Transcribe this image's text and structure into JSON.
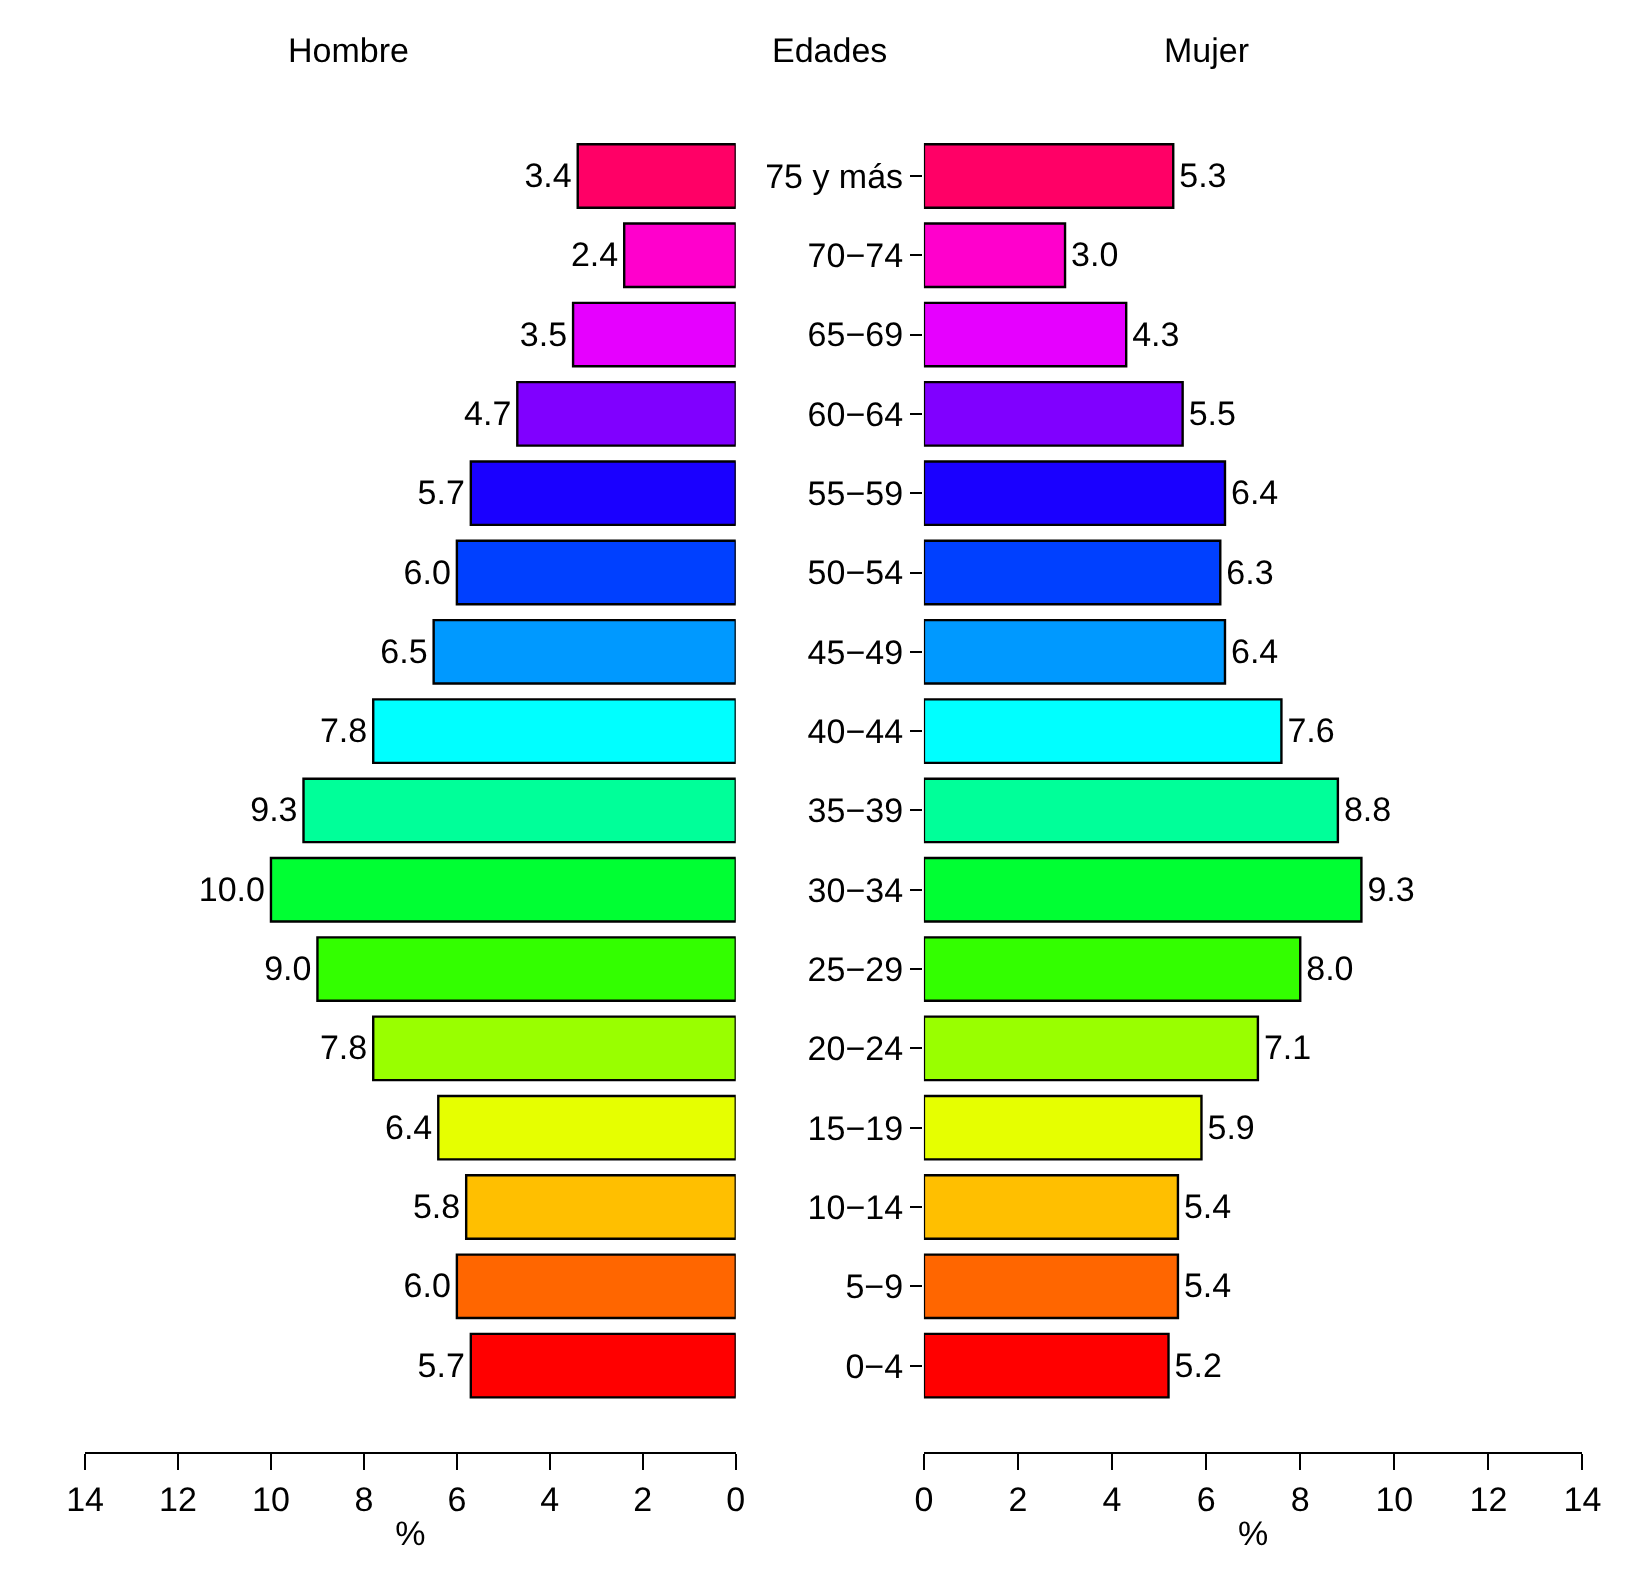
{
  "chart_data": [
    {
      "type": "bar",
      "orientation": "horizontal",
      "title": "Hombre",
      "xlabel": "%",
      "categories": [
        null,
        null,
        null,
        null,
        null,
        null,
        null,
        null,
        null,
        null,
        null,
        null,
        null,
        null,
        null,
        null
      ],
      "values": [
        3.4,
        2.4,
        3.5,
        4.7,
        5.7,
        6.0,
        6.5,
        7.8,
        9.3,
        10.0,
        9.0,
        7.8,
        6.4,
        5.8,
        6.0,
        5.7
      ],
      "value_labels": [
        "3.4",
        "2.4",
        "3.5",
        "4.7",
        "5.7",
        "6.0",
        "6.5",
        "7.8",
        "9.3",
        "10.0",
        "9.0",
        "7.8",
        "6.4",
        "5.8",
        "6.0",
        "5.7"
      ],
      "colors": [
        "#ff0066",
        "#ff00cc",
        "#e600ff",
        "#8000ff",
        "#1a00ff",
        "#0040ff",
        "#0099ff",
        "#00ffff",
        "#00ff99",
        "#00ff33",
        "#33ff00",
        "#99ff00",
        "#e6ff00",
        "#ffbf00",
        "#ff6600",
        "#ff0000"
      ],
      "xlim": [
        14,
        0
      ],
      "xticks": [
        14,
        12,
        10,
        8,
        6,
        4,
        2,
        0
      ],
      "tick_labels": "x"
    },
    {
      "type": "bar",
      "orientation": "horizontal",
      "title": "Mujer",
      "xlabel": "%",
      "annotations": [
        "Edades"
      ],
      "categories": [
        "75 y más",
        "70−74",
        "65−69",
        "60−64",
        "55−59",
        "50−54",
        "45−49",
        "40−44",
        "35−39",
        "30−34",
        "25−29",
        "20−24",
        "15−19",
        "10−14",
        "5−9",
        "0−4"
      ],
      "values": [
        5.3,
        3.0,
        4.3,
        5.5,
        6.4,
        6.3,
        6.4,
        7.6,
        8.8,
        9.3,
        8.0,
        7.1,
        5.9,
        5.4,
        5.4,
        5.2
      ],
      "value_labels": [
        "5.3",
        "3.0",
        "4.3",
        "5.5",
        "6.4",
        "6.3",
        "6.4",
        "7.6",
        "8.8",
        "9.3",
        "8.0",
        "7.1",
        "5.9",
        "5.4",
        "5.4",
        "5.2"
      ],
      "colors": [
        "#ff0066",
        "#ff00cc",
        "#e600ff",
        "#8000ff",
        "#1a00ff",
        "#0040ff",
        "#0099ff",
        "#00ffff",
        "#00ff99",
        "#00ff33",
        "#33ff00",
        "#99ff00",
        "#e6ff00",
        "#ffbf00",
        "#ff6600",
        "#ff0000"
      ],
      "xlim": [
        0,
        14
      ],
      "xticks": [
        0,
        2,
        4,
        6,
        8,
        10,
        12,
        14
      ]
    }
  ]
}
